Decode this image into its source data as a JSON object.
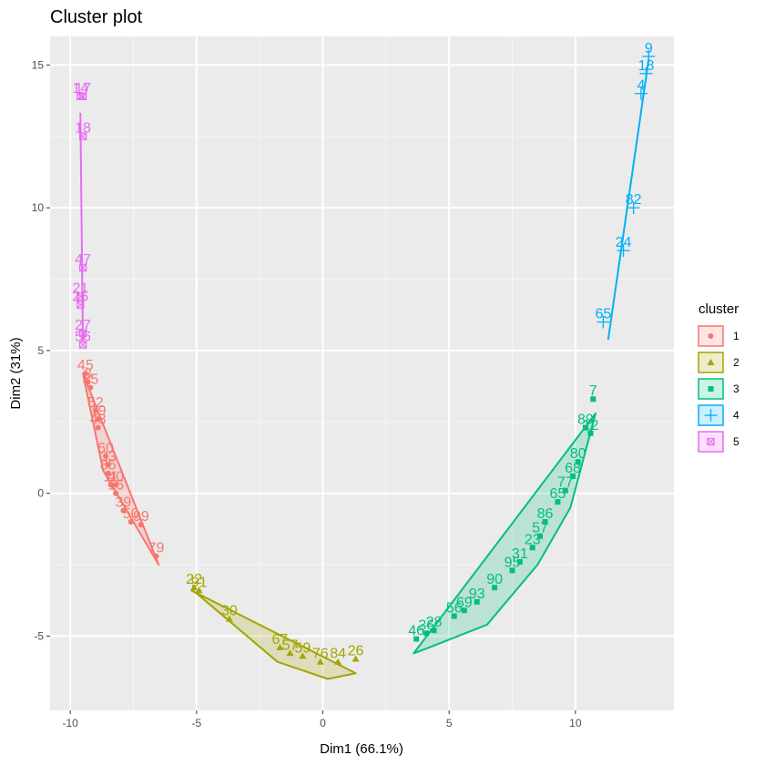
{
  "chart_data": {
    "type": "scatter",
    "title": "Cluster plot",
    "xlabel": "Dim1 (66.1%)",
    "ylabel": "Dim2 (31%)",
    "xlim": [
      -10.8,
      13.9
    ],
    "ylim": [
      -7.6,
      16.0
    ],
    "x_ticks": [
      -10,
      -5,
      0,
      5,
      10
    ],
    "y_ticks": [
      -5,
      0,
      5,
      10,
      15
    ],
    "x_tick_labels": [
      "-10",
      "-5",
      "0",
      "5",
      "10"
    ],
    "y_tick_labels": [
      "-5",
      "0",
      "5",
      "10",
      "15"
    ],
    "grid": true,
    "legend": {
      "title": "cluster",
      "position": "right",
      "entries": [
        "1",
        "2",
        "3",
        "4",
        "5"
      ]
    },
    "colors": {
      "1": "#F8766D",
      "2": "#A3A500",
      "3": "#00BF7D",
      "4": "#00B0F6",
      "5": "#E76BF3"
    },
    "series": [
      {
        "name": "1",
        "marker": "circle",
        "hull": [
          [
            -9.5,
            4.2
          ],
          [
            -6.5,
            -2.5
          ],
          [
            -8.7,
            0.8
          ]
        ],
        "points": [
          {
            "id": "45",
            "x": -9.4,
            "y": 4.2
          },
          {
            "id": "3",
            "x": -9.3,
            "y": 3.9
          },
          {
            "id": "35",
            "x": -9.2,
            "y": 3.7
          },
          {
            "id": "52",
            "x": -9.0,
            "y": 2.9
          },
          {
            "id": "19",
            "x": -8.9,
            "y": 2.6
          },
          {
            "id": "48",
            "x": -8.9,
            "y": 2.3
          },
          {
            "id": "60",
            "x": -8.6,
            "y": 1.3
          },
          {
            "id": "33",
            "x": -8.5,
            "y": 1.0
          },
          {
            "id": "85",
            "x": -8.5,
            "y": 0.7
          },
          {
            "id": "11",
            "x": -8.4,
            "y": 0.3
          },
          {
            "id": "40",
            "x": -8.2,
            "y": 0.3
          },
          {
            "id": "16",
            "x": -8.2,
            "y": 0.0
          },
          {
            "id": "39",
            "x": -7.9,
            "y": -0.6
          },
          {
            "id": "50",
            "x": -7.6,
            "y": -1.0
          },
          {
            "id": "99",
            "x": -7.2,
            "y": -1.1
          },
          {
            "id": "79",
            "x": -6.6,
            "y": -2.2
          }
        ]
      },
      {
        "name": "2",
        "marker": "triangle",
        "hull": [
          [
            -5.2,
            -3.4
          ],
          [
            1.3,
            -6.3
          ],
          [
            0.2,
            -6.5
          ],
          [
            -1.8,
            -5.9
          ],
          [
            -5.0,
            -3.5
          ]
        ],
        "points": [
          {
            "id": "22",
            "x": -5.1,
            "y": -3.3
          },
          {
            "id": "91",
            "x": -4.9,
            "y": -3.4
          },
          {
            "id": "30",
            "x": -3.7,
            "y": -4.4
          },
          {
            "id": "67",
            "x": -1.7,
            "y": -5.4
          },
          {
            "id": "57",
            "x": -1.3,
            "y": -5.6
          },
          {
            "id": "59",
            "x": -0.8,
            "y": -5.7
          },
          {
            "id": "76",
            "x": -0.1,
            "y": -5.9
          },
          {
            "id": "84",
            "x": 0.6,
            "y": -5.9
          },
          {
            "id": "26",
            "x": 1.3,
            "y": -5.8
          }
        ]
      },
      {
        "name": "3",
        "marker": "square",
        "hull": [
          [
            10.8,
            2.8
          ],
          [
            3.6,
            -5.6
          ],
          [
            4.2,
            -5.4
          ],
          [
            6.5,
            -4.6
          ],
          [
            8.5,
            -2.5
          ],
          [
            9.8,
            -0.5
          ]
        ],
        "points": [
          {
            "id": "7",
            "x": 10.7,
            "y": 3.3
          },
          {
            "id": "12",
            "x": 10.6,
            "y": 2.1
          },
          {
            "id": "89",
            "x": 10.4,
            "y": 2.3
          },
          {
            "id": "80",
            "x": 10.1,
            "y": 1.1
          },
          {
            "id": "68",
            "x": 9.9,
            "y": 0.6
          },
          {
            "id": "77",
            "x": 9.6,
            "y": 0.1
          },
          {
            "id": "65",
            "x": 9.3,
            "y": -0.3
          },
          {
            "id": "86",
            "x": 8.8,
            "y": -1.0
          },
          {
            "id": "57b",
            "x": 8.6,
            "y": -1.5
          },
          {
            "id": "23",
            "x": 8.3,
            "y": -1.9
          },
          {
            "id": "31",
            "x": 7.8,
            "y": -2.4
          },
          {
            "id": "95",
            "x": 7.5,
            "y": -2.7
          },
          {
            "id": "90",
            "x": 6.8,
            "y": -3.3
          },
          {
            "id": "93",
            "x": 6.1,
            "y": -3.8
          },
          {
            "id": "69",
            "x": 5.6,
            "y": -4.1
          },
          {
            "id": "56",
            "x": 5.2,
            "y": -4.3
          },
          {
            "id": "28",
            "x": 4.4,
            "y": -4.8
          },
          {
            "id": "36",
            "x": 4.1,
            "y": -4.9
          },
          {
            "id": "46",
            "x": 3.7,
            "y": -5.1
          }
        ]
      },
      {
        "name": "4",
        "marker": "cross",
        "hull": [
          [
            12.9,
            15.2
          ],
          [
            11.3,
            5.4
          ]
        ],
        "points": [
          {
            "id": "9",
            "x": 12.9,
            "y": 15.3
          },
          {
            "id": "18",
            "x": 12.8,
            "y": 14.7
          },
          {
            "id": "4",
            "x": 12.6,
            "y": 14.0
          },
          {
            "id": "82",
            "x": 12.3,
            "y": 10.0
          },
          {
            "id": "24",
            "x": 11.9,
            "y": 8.5
          },
          {
            "id": "65b",
            "x": 11.1,
            "y": 6.0
          }
        ]
      },
      {
        "name": "5",
        "marker": "boxed-cross",
        "hull": [
          [
            -9.6,
            13.3
          ],
          [
            -9.5,
            5.3
          ]
        ],
        "points": [
          {
            "id": "17",
            "x": -9.5,
            "y": 13.9
          },
          {
            "id": "14",
            "x": -9.6,
            "y": 13.9
          },
          {
            "id": "18b",
            "x": -9.5,
            "y": 12.5
          },
          {
            "id": "47",
            "x": -9.5,
            "y": 7.9
          },
          {
            "id": "21",
            "x": -9.6,
            "y": 6.9
          },
          {
            "id": "25",
            "x": -9.6,
            "y": 6.6
          },
          {
            "id": "27",
            "x": -9.5,
            "y": 5.6
          },
          {
            "id": "56b",
            "x": -9.5,
            "y": 5.2
          }
        ]
      }
    ]
  }
}
